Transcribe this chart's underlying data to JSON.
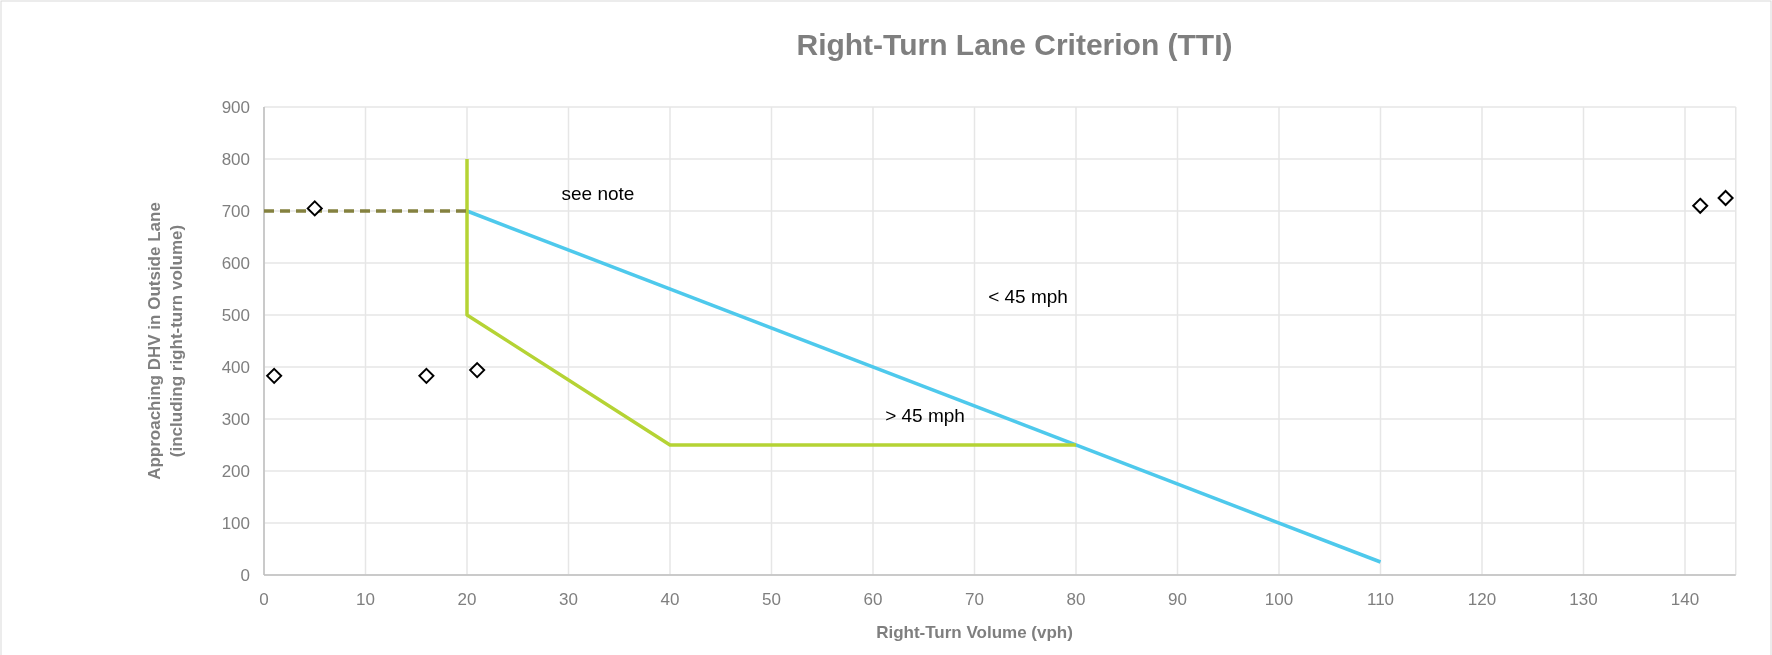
{
  "chart_data": {
    "type": "line",
    "title": "Right-Turn Lane Criterion (TTI)",
    "xlabel": "Right-Turn Volume (vph)",
    "ylabel": "Approaching DHV in Outside Lane\n(including right-turn volume)",
    "xlim": [
      0,
      145
    ],
    "xticks": [
      0,
      10,
      20,
      30,
      40,
      50,
      60,
      70,
      80,
      90,
      100,
      110,
      120,
      130,
      140
    ],
    "ylim": [
      0,
      900
    ],
    "yticks": [
      0,
      100,
      200,
      300,
      400,
      500,
      600,
      700,
      800,
      900
    ],
    "grid": true,
    "series": [
      {
        "color": "#4ec9ec",
        "x": [
          20,
          110
        ],
        "values": [
          700,
          25
        ],
        "line_style": "solid"
      },
      {
        "color": "#b5d334",
        "x": [
          20,
          20,
          40,
          80
        ],
        "values": [
          800,
          500,
          250,
          250
        ],
        "line_style": "solid"
      },
      {
        "color": "#84813f",
        "x": [
          0,
          20
        ],
        "values": [
          700,
          700
        ],
        "line_style": "dashed"
      },
      {
        "type": "scatter",
        "color": "#000000",
        "marker": "diamond",
        "x": [
          1,
          5,
          16,
          21,
          141.5,
          144
        ],
        "values": [
          383,
          705,
          383,
          394,
          710,
          725
        ]
      }
    ],
    "annotations": [
      "see note",
      "< 45 mph",
      "> 45 mph"
    ]
  }
}
